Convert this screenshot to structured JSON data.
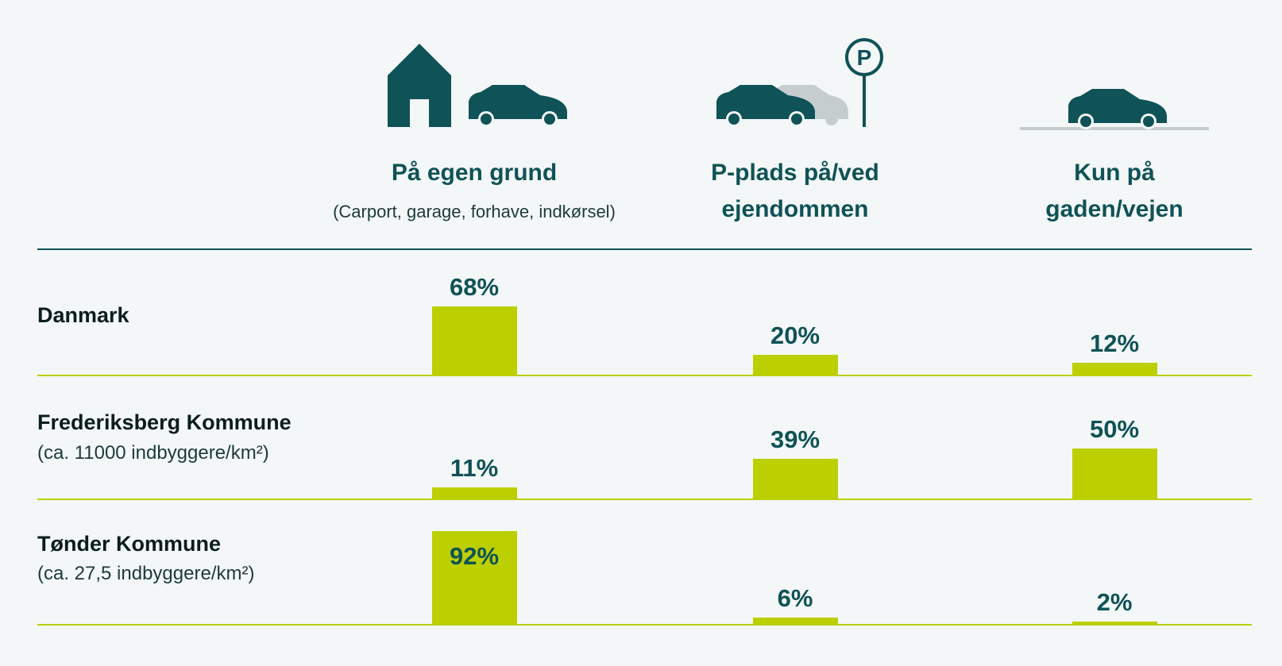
{
  "chart_data": {
    "type": "bar",
    "categories": [
      "På egen grund",
      "P-plads på/ved ejendommen",
      "Kun på gaden/vejen"
    ],
    "category_note": "(Carport, garage, forhave, indkørsel)",
    "color": "#bccf00",
    "ylim": [
      0,
      100
    ],
    "series": [
      {
        "name": "Danmark",
        "values": [
          68,
          20,
          12
        ],
        "value_labels": [
          "68%",
          "20%",
          "12%"
        ]
      },
      {
        "name": "Frederiksberg Kommune",
        "note": "(ca. 11000 indbyggere/km²)",
        "values": [
          11,
          39,
          50
        ],
        "value_labels": [
          "11%",
          "39%",
          "50%"
        ]
      },
      {
        "name": "Tønder Kommune",
        "note": "(ca. 27,5 indbyggere/km²)",
        "values": [
          92,
          6,
          2
        ],
        "value_labels": [
          "92%",
          "6%",
          "2%"
        ]
      }
    ]
  }
}
